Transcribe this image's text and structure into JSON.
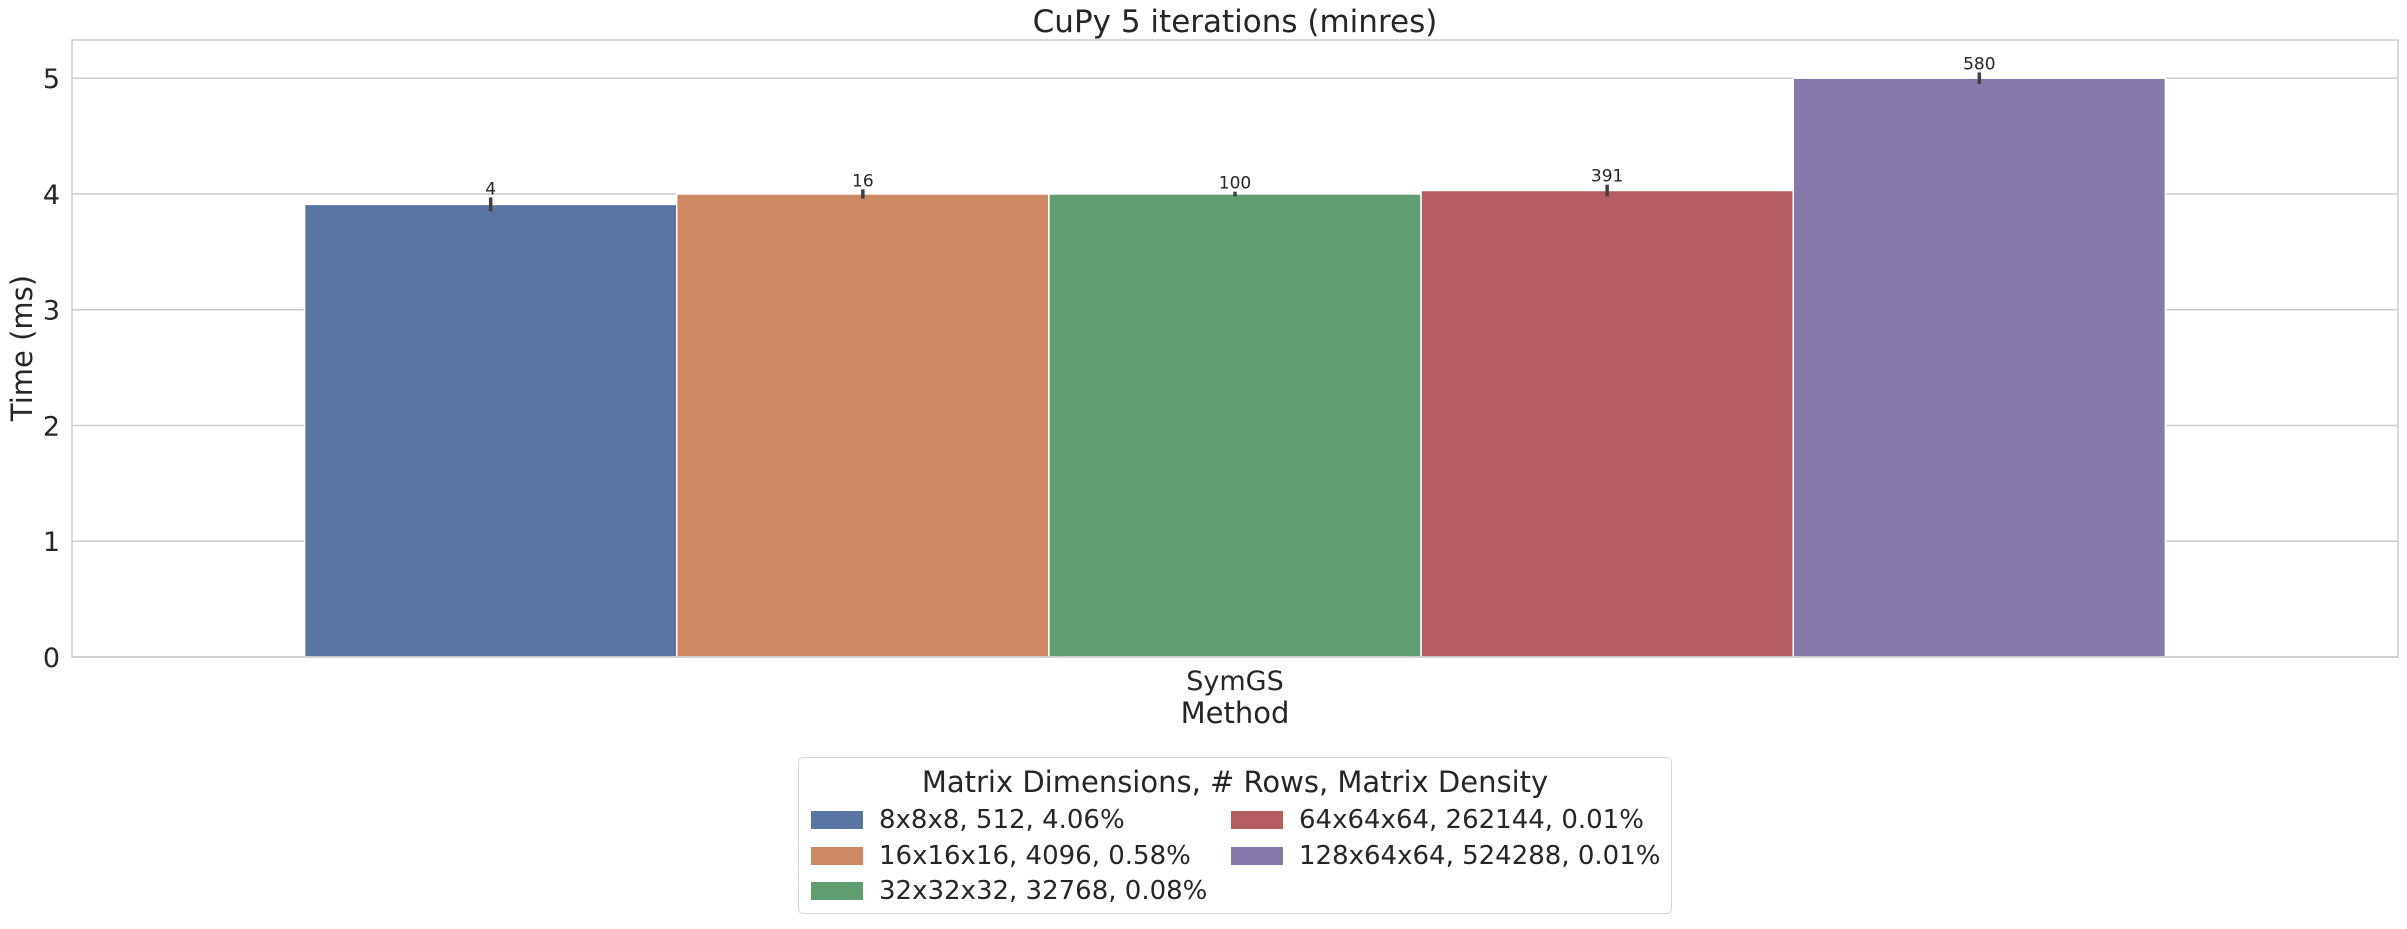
{
  "chart_data": {
    "type": "bar",
    "title": "CuPy 5 iterations (minres)",
    "xlabel": "Method",
    "ylabel": "Time (ms)",
    "categories": [
      "SymGS"
    ],
    "ylim": [
      0,
      5.33
    ],
    "yticks": [
      "0",
      "1",
      "2",
      "3",
      "4",
      "5"
    ],
    "grid": true,
    "legend": {
      "title": "Matrix Dimensions, # Rows, Matrix Density",
      "placement": "bottom-center",
      "ncols": 2
    },
    "series": [
      {
        "name": "8x8x8, 512, 4.06%",
        "values": [
          3.91
        ],
        "error": [
          0.06
        ],
        "label": "4",
        "color": "#5975a4"
      },
      {
        "name": "16x16x16, 4096, 0.58%",
        "values": [
          4.0
        ],
        "error": [
          0.04
        ],
        "label": "16",
        "color": "#cc8963"
      },
      {
        "name": "32x32x32, 32768, 0.08%",
        "values": [
          4.0
        ],
        "error": [
          0.02
        ],
        "label": "100",
        "color": "#5f9e6e"
      },
      {
        "name": "64x64x64, 262144, 0.01%",
        "values": [
          4.03
        ],
        "error": [
          0.05
        ],
        "label": "391",
        "color": "#b55d60"
      },
      {
        "name": "128x64x64, 524288, 0.01%",
        "values": [
          5.0
        ],
        "error": [
          0.05
        ],
        "label": "580",
        "color": "#857aab"
      }
    ]
  }
}
